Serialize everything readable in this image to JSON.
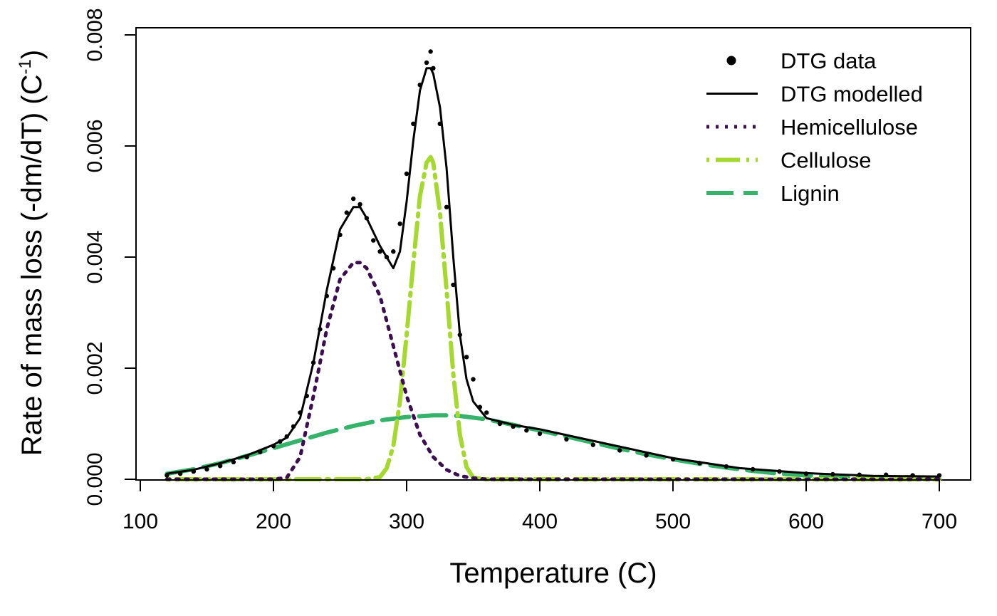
{
  "chart_data": {
    "type": "line",
    "xlabel": "Temperature (C)",
    "ylabel": "Rate of mass loss (-dm/dT) (C",
    "ylabel_sup": "-1",
    "ylabel_close": ")",
    "xlim": [
      100,
      720
    ],
    "ylim": [
      0,
      0.008
    ],
    "xticks": [
      100,
      200,
      300,
      400,
      500,
      600,
      700
    ],
    "yticks": [
      "0.000",
      "0.002",
      "0.004",
      "0.006",
      "0.008"
    ],
    "legend_position": "top-right",
    "grid": false,
    "series": [
      {
        "name": "DTG data",
        "style": "points",
        "color": "#000000",
        "x": [
          120,
          130,
          140,
          150,
          160,
          170,
          180,
          190,
          200,
          205,
          210,
          215,
          220,
          225,
          230,
          235,
          240,
          245,
          250,
          255,
          260,
          265,
          270,
          275,
          280,
          285,
          290,
          295,
          300,
          305,
          310,
          315,
          318,
          320,
          325,
          330,
          335,
          340,
          345,
          350,
          355,
          360,
          370,
          380,
          390,
          400,
          420,
          440,
          460,
          480,
          500,
          520,
          540,
          560,
          580,
          600,
          620,
          640,
          660,
          680,
          700
        ],
        "y": [
          7e-05,
          0.0001,
          0.00014,
          0.00018,
          0.00024,
          0.00031,
          0.0004,
          0.00049,
          0.0006,
          0.00068,
          0.00077,
          0.00095,
          0.0012,
          0.0015,
          0.0021,
          0.0027,
          0.0033,
          0.0038,
          0.0044,
          0.0048,
          0.00505,
          0.00495,
          0.0047,
          0.0043,
          0.0041,
          0.004,
          0.0041,
          0.0046,
          0.0055,
          0.0064,
          0.0071,
          0.0075,
          0.0077,
          0.0074,
          0.0064,
          0.0049,
          0.0035,
          0.0026,
          0.0022,
          0.0018,
          0.0013,
          0.0012,
          0.001,
          0.00095,
          0.00088,
          0.00082,
          0.00072,
          0.00062,
          0.00052,
          0.00043,
          0.00036,
          0.00029,
          0.00023,
          0.00018,
          0.00014,
          0.0001,
          9e-05,
          8e-05,
          8e-05,
          7e-05,
          7e-05
        ]
      },
      {
        "name": "DTG modelled",
        "style": "solid",
        "color": "#000000",
        "x": [
          120,
          140,
          160,
          180,
          200,
          210,
          220,
          230,
          240,
          250,
          260,
          265,
          270,
          280,
          290,
          295,
          300,
          305,
          310,
          315,
          318,
          320,
          325,
          330,
          335,
          340,
          345,
          350,
          360,
          380,
          400,
          450,
          500,
          550,
          600,
          650,
          700
        ],
        "y": [
          0.0001,
          0.00017,
          0.00029,
          0.00043,
          0.00062,
          0.00075,
          0.0011,
          0.0021,
          0.0034,
          0.0045,
          0.0049,
          0.0049,
          0.0047,
          0.0042,
          0.0038,
          0.0041,
          0.005,
          0.0061,
          0.007,
          0.0074,
          0.0074,
          0.0073,
          0.0067,
          0.0056,
          0.004,
          0.0026,
          0.0018,
          0.0014,
          0.0011,
          0.00098,
          0.0009,
          0.00064,
          0.00038,
          0.0002,
          0.00011,
          6e-05,
          5e-05
        ]
      },
      {
        "name": "Hemicellulose",
        "style": "dotted",
        "color": "#3b0f4f",
        "x": [
          120,
          160,
          200,
          210,
          220,
          230,
          240,
          250,
          260,
          265,
          270,
          280,
          290,
          300,
          310,
          320,
          330,
          340,
          350,
          360,
          400,
          500,
          600,
          700
        ],
        "y": [
          0,
          0,
          0,
          3e-05,
          0.0004,
          0.0015,
          0.0027,
          0.0036,
          0.0039,
          0.0039,
          0.0038,
          0.0033,
          0.0024,
          0.0015,
          0.0008,
          0.0004,
          0.00017,
          6e-05,
          2e-05,
          0,
          0,
          0,
          0,
          0
        ]
      },
      {
        "name": "Cellulose",
        "style": "dotdash",
        "color": "#a6d930",
        "x": [
          120,
          200,
          270,
          280,
          285,
          290,
          295,
          300,
          305,
          310,
          315,
          318,
          320,
          325,
          330,
          335,
          340,
          345,
          350,
          360,
          400,
          500,
          600,
          700
        ],
        "y": [
          0,
          0,
          0,
          4e-05,
          0.0002,
          0.0006,
          0.0014,
          0.0026,
          0.0039,
          0.0051,
          0.0057,
          0.0058,
          0.0057,
          0.0048,
          0.0034,
          0.0019,
          0.0008,
          0.00022,
          3e-05,
          0,
          0,
          0,
          0,
          0
        ]
      },
      {
        "name": "Lignin",
        "style": "longdash",
        "color": "#35b36b",
        "x": [
          120,
          140,
          160,
          180,
          200,
          220,
          240,
          260,
          280,
          300,
          320,
          330,
          340,
          360,
          380,
          400,
          420,
          440,
          460,
          480,
          500,
          520,
          540,
          560,
          580,
          600,
          620,
          640,
          660,
          680,
          700
        ],
        "y": [
          0.0001,
          0.00018,
          0.00029,
          0.00042,
          0.00056,
          0.0007,
          0.00084,
          0.00096,
          0.00106,
          0.00112,
          0.00115,
          0.00115,
          0.00114,
          0.00108,
          0.00098,
          0.00088,
          0.00077,
          0.00066,
          0.00055,
          0.00045,
          0.00036,
          0.00028,
          0.00021,
          0.00015,
          0.0001,
          7e-05,
          4e-05,
          3e-05,
          2e-05,
          1e-05,
          1e-05
        ]
      }
    ]
  }
}
